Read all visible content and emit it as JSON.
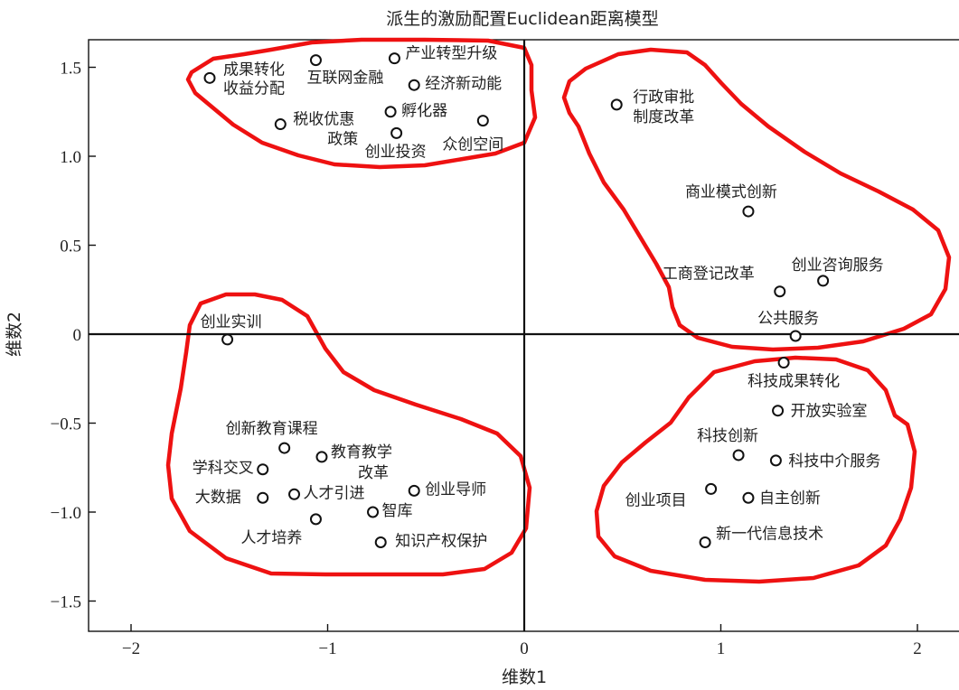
{
  "chart_data": {
    "type": "scatter",
    "title": "派生的激励配置Euclidean距离模型",
    "xlabel": "维数1",
    "ylabel": "维数2",
    "xlim": [
      -2.2,
      2.2
    ],
    "ylim": [
      -1.65,
      1.65
    ],
    "x_ticks": [
      -2,
      -1,
      0,
      1,
      2
    ],
    "x_tick_labels": [
      "−2",
      "−1",
      "0",
      "1",
      "2"
    ],
    "y_ticks": [
      1.5,
      1.0,
      0.5,
      0,
      -0.5,
      -1.0,
      -1.5
    ],
    "y_tick_labels": [
      "1.5",
      "1.0",
      "0.5",
      "0",
      "−0.5",
      "−1.0",
      "−1.5"
    ],
    "zero_lines": true,
    "grid": false,
    "points": [
      {
        "label": "成果转化收益分配",
        "x": -1.6,
        "y": 1.44
      },
      {
        "label": "互联网金融",
        "x": -1.06,
        "y": 1.54
      },
      {
        "label": "产业转型升级",
        "x": -0.66,
        "y": 1.55
      },
      {
        "label": "经济新动能",
        "x": -0.56,
        "y": 1.4
      },
      {
        "label": "孵化器",
        "x": -0.68,
        "y": 1.25
      },
      {
        "label": "税收优惠政策",
        "x": -1.24,
        "y": 1.18
      },
      {
        "label": "众创空间",
        "x": -0.21,
        "y": 1.2
      },
      {
        "label": "创业投资",
        "x": -0.65,
        "y": 1.13
      },
      {
        "label": "行政审批制度改革",
        "x": 0.47,
        "y": 1.29
      },
      {
        "label": "商业模式创新",
        "x": 1.14,
        "y": 0.69
      },
      {
        "label": "工商登记改革",
        "x": 1.3,
        "y": 0.24
      },
      {
        "label": "创业咨询服务",
        "x": 1.52,
        "y": 0.3
      },
      {
        "label": "公共服务",
        "x": 1.38,
        "y": -0.01
      },
      {
        "label": "创业实训",
        "x": -1.51,
        "y": -0.03
      },
      {
        "label": "科技成果转化",
        "x": 1.32,
        "y": -0.16
      },
      {
        "label": "开放实验室",
        "x": 1.29,
        "y": -0.43
      },
      {
        "label": "科技创新",
        "x": 1.09,
        "y": -0.68
      },
      {
        "label": "科技中介服务",
        "x": 1.28,
        "y": -0.71
      },
      {
        "label": "创业项目",
        "x": 0.95,
        "y": -0.87
      },
      {
        "label": "自主创新",
        "x": 1.14,
        "y": -0.92
      },
      {
        "label": "新一代信息技术",
        "x": 0.92,
        "y": -1.17
      },
      {
        "label": "创新教育课程",
        "x": -1.22,
        "y": -0.64
      },
      {
        "label": "教育教学改革",
        "x": -1.03,
        "y": -0.69
      },
      {
        "label": "学科交叉",
        "x": -1.33,
        "y": -0.76
      },
      {
        "label": "大数据",
        "x": -1.33,
        "y": -0.92
      },
      {
        "label": "人才引进",
        "x": -1.17,
        "y": -0.9
      },
      {
        "label": "创业导师",
        "x": -0.56,
        "y": -0.88
      },
      {
        "label": "智库",
        "x": -0.77,
        "y": -1.0
      },
      {
        "label": "人才培养",
        "x": -1.06,
        "y": -1.04
      },
      {
        "label": "知识产权保护",
        "x": -0.73,
        "y": -1.17
      }
    ],
    "clusters": 4,
    "cluster_color": "#ee1111",
    "point_color": "#111111"
  }
}
